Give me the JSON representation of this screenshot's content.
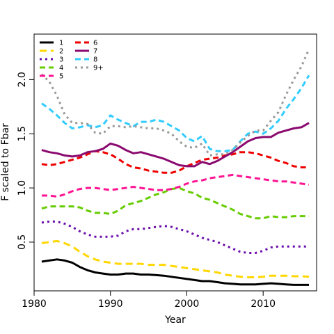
{
  "chart_data": {
    "type": "line",
    "xlabel": "Year",
    "ylabel": "F scaled to Fbar",
    "xlim": [
      1980,
      2017
    ],
    "ylim": [
      0.05,
      2.42
    ],
    "xticks": [
      1980,
      1990,
      2000,
      2010
    ],
    "yticks": [
      0.5,
      1.0,
      1.5,
      2.0
    ],
    "yticklabels": [
      "0.5",
      "1.0",
      "1.5",
      "2.0"
    ],
    "grid": false,
    "legend_position": "top-left",
    "x": [
      1981,
      1982,
      1983,
      1984,
      1985,
      1986,
      1987,
      1988,
      1989,
      1990,
      1991,
      1992,
      1993,
      1994,
      1995,
      1996,
      1997,
      1998,
      1999,
      2000,
      2001,
      2002,
      2003,
      2004,
      2005,
      2006,
      2007,
      2008,
      2009,
      2010,
      2011,
      2012,
      2013,
      2014,
      2015,
      2016
    ],
    "series": [
      {
        "name": "1",
        "color": "#000000",
        "dash": "solid",
        "values": [
          0.32,
          0.33,
          0.34,
          0.33,
          0.31,
          0.27,
          0.24,
          0.22,
          0.21,
          0.2,
          0.2,
          0.21,
          0.21,
          0.2,
          0.2,
          0.195,
          0.19,
          0.18,
          0.17,
          0.16,
          0.15,
          0.14,
          0.14,
          0.13,
          0.12,
          0.115,
          0.11,
          0.11,
          0.11,
          0.115,
          0.12,
          0.115,
          0.11,
          0.105,
          0.105,
          0.105
        ]
      },
      {
        "name": "2",
        "color": "#FFD700",
        "dash": "long",
        "values": [
          0.49,
          0.5,
          0.51,
          0.49,
          0.46,
          0.41,
          0.37,
          0.34,
          0.32,
          0.31,
          0.3,
          0.3,
          0.3,
          0.3,
          0.29,
          0.29,
          0.29,
          0.28,
          0.27,
          0.26,
          0.25,
          0.24,
          0.23,
          0.22,
          0.2,
          0.19,
          0.18,
          0.175,
          0.175,
          0.18,
          0.19,
          0.19,
          0.19,
          0.185,
          0.185,
          0.18
        ]
      },
      {
        "name": "3",
        "color": "#6A0DAD",
        "dash": "dotted",
        "values": [
          0.68,
          0.69,
          0.69,
          0.67,
          0.64,
          0.6,
          0.57,
          0.55,
          0.55,
          0.55,
          0.56,
          0.6,
          0.62,
          0.62,
          0.63,
          0.64,
          0.65,
          0.64,
          0.62,
          0.6,
          0.57,
          0.54,
          0.52,
          0.5,
          0.47,
          0.44,
          0.41,
          0.4,
          0.4,
          0.42,
          0.45,
          0.46,
          0.46,
          0.46,
          0.46,
          0.46
        ]
      },
      {
        "name": "4",
        "color": "#66CC00",
        "dash": "dashed",
        "values": [
          0.81,
          0.83,
          0.83,
          0.83,
          0.83,
          0.82,
          0.79,
          0.77,
          0.77,
          0.76,
          0.79,
          0.84,
          0.86,
          0.88,
          0.91,
          0.94,
          0.96,
          0.99,
          1.0,
          0.97,
          0.95,
          0.91,
          0.89,
          0.86,
          0.83,
          0.8,
          0.76,
          0.74,
          0.72,
          0.72,
          0.74,
          0.73,
          0.73,
          0.74,
          0.74,
          0.74
        ]
      },
      {
        "name": "5",
        "color": "#FF1493",
        "dash": "dashed",
        "values": [
          0.93,
          0.93,
          0.92,
          0.94,
          0.97,
          0.99,
          1.0,
          1.0,
          0.99,
          0.98,
          0.99,
          1.0,
          1.01,
          1.0,
          0.99,
          0.98,
          0.98,
          0.99,
          1.01,
          1.04,
          1.06,
          1.07,
          1.09,
          1.1,
          1.11,
          1.12,
          1.11,
          1.1,
          1.09,
          1.08,
          1.07,
          1.06,
          1.06,
          1.05,
          1.04,
          1.03
        ]
      },
      {
        "name": "6",
        "color": "#EE0000",
        "dash": "dashed",
        "values": [
          1.22,
          1.21,
          1.22,
          1.24,
          1.26,
          1.28,
          1.31,
          1.34,
          1.33,
          1.31,
          1.27,
          1.22,
          1.19,
          1.18,
          1.16,
          1.15,
          1.14,
          1.14,
          1.16,
          1.2,
          1.23,
          1.26,
          1.27,
          1.28,
          1.3,
          1.31,
          1.33,
          1.33,
          1.32,
          1.3,
          1.28,
          1.25,
          1.23,
          1.2,
          1.19,
          1.19
        ]
      },
      {
        "name": "7",
        "color": "#8B0A6F",
        "dash": "solid",
        "values": [
          1.35,
          1.33,
          1.32,
          1.3,
          1.29,
          1.3,
          1.33,
          1.34,
          1.36,
          1.41,
          1.39,
          1.35,
          1.32,
          1.33,
          1.31,
          1.29,
          1.27,
          1.24,
          1.21,
          1.2,
          1.2,
          1.24,
          1.22,
          1.25,
          1.29,
          1.33,
          1.38,
          1.43,
          1.46,
          1.47,
          1.47,
          1.51,
          1.53,
          1.55,
          1.56,
          1.6
        ]
      },
      {
        "name": "8",
        "color": "#33CCFF",
        "dash": "dashed",
        "values": [
          1.78,
          1.73,
          1.67,
          1.6,
          1.55,
          1.56,
          1.58,
          1.56,
          1.58,
          1.67,
          1.63,
          1.6,
          1.57,
          1.61,
          1.61,
          1.63,
          1.61,
          1.57,
          1.53,
          1.46,
          1.43,
          1.48,
          1.36,
          1.34,
          1.34,
          1.35,
          1.43,
          1.5,
          1.52,
          1.5,
          1.55,
          1.62,
          1.73,
          1.82,
          1.92,
          2.04
        ]
      },
      {
        "name": "9+",
        "color": "#999999",
        "dash": "dotted",
        "values": [
          2.05,
          1.98,
          1.85,
          1.68,
          1.6,
          1.6,
          1.59,
          1.51,
          1.5,
          1.57,
          1.57,
          1.56,
          1.57,
          1.56,
          1.55,
          1.55,
          1.53,
          1.5,
          1.43,
          1.38,
          1.37,
          1.41,
          1.3,
          1.31,
          1.31,
          1.35,
          1.42,
          1.48,
          1.53,
          1.53,
          1.62,
          1.7,
          1.86,
          2.0,
          2.12,
          2.28
        ]
      }
    ]
  }
}
